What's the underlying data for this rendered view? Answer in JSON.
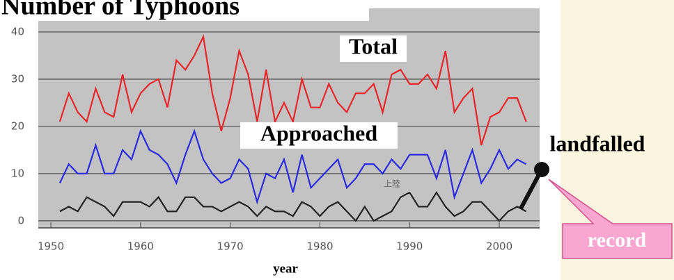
{
  "chart_data": {
    "type": "line",
    "title": "Number of Typhoons",
    "x_label": "year",
    "x": [
      1951,
      1952,
      1953,
      1954,
      1955,
      1956,
      1957,
      1958,
      1959,
      1960,
      1961,
      1962,
      1963,
      1964,
      1965,
      1966,
      1967,
      1968,
      1969,
      1970,
      1971,
      1972,
      1973,
      1974,
      1975,
      1976,
      1977,
      1978,
      1979,
      1980,
      1981,
      1982,
      1983,
      1984,
      1985,
      1986,
      1987,
      1988,
      1989,
      1990,
      1991,
      1992,
      1993,
      1994,
      1995,
      1996,
      1997,
      1998,
      1999,
      2000,
      2001,
      2002,
      2003
    ],
    "series": [
      {
        "name": "Total",
        "color": "#e8262a",
        "values": [
          21,
          27,
          23,
          21,
          28,
          23,
          22,
          31,
          23,
          27,
          29,
          30,
          24,
          34,
          32,
          35,
          39,
          27,
          19,
          26,
          36,
          31,
          21,
          32,
          21,
          25,
          21,
          30,
          24,
          24,
          29,
          25,
          23,
          27,
          27,
          29,
          23,
          31,
          32,
          29,
          29,
          31,
          28,
          36,
          23,
          26,
          28,
          16,
          22,
          23,
          26,
          26,
          21
        ]
      },
      {
        "name": "Approached",
        "color": "#2a2ae0",
        "values": [
          8,
          12,
          10,
          10,
          16,
          10,
          10,
          15,
          13,
          19,
          15,
          14,
          12,
          8,
          14,
          19,
          13,
          10,
          8,
          9,
          13,
          11,
          4,
          10,
          9,
          13,
          6,
          14,
          7,
          9,
          11,
          13,
          7,
          9,
          12,
          12,
          10,
          13,
          11,
          14,
          14,
          14,
          9,
          15,
          5,
          10,
          15,
          8,
          11,
          15,
          11,
          13,
          12
        ]
      },
      {
        "name": "landfalled",
        "color": "#222222",
        "values": [
          2,
          3,
          2,
          5,
          4,
          3,
          1,
          4,
          4,
          4,
          3,
          5,
          2,
          2,
          5,
          5,
          3,
          3,
          2,
          3,
          4,
          3,
          1,
          3,
          2,
          2,
          1,
          4,
          3,
          1,
          3,
          4,
          2,
          0,
          3,
          0,
          1,
          2,
          5,
          6,
          3,
          3,
          6,
          3,
          1,
          2,
          4,
          4,
          2,
          0,
          2,
          3,
          2
        ]
      }
    ],
    "xlim": [
      1948.6,
      2004.5
    ],
    "xticks": [
      1950,
      1960,
      1970,
      1980,
      1990,
      2000
    ],
    "ylim": [
      -1.5,
      45
    ],
    "yticks": [
      0,
      10,
      20,
      30,
      40
    ],
    "grid": true,
    "annotations": [
      "上陸",
      "record"
    ]
  }
}
